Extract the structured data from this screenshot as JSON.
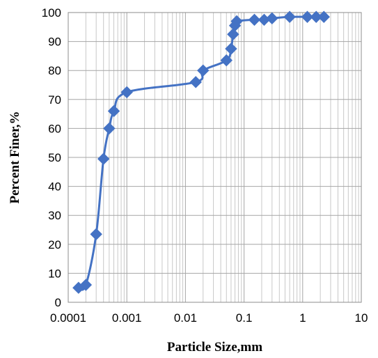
{
  "chart_data": {
    "type": "scatter",
    "title": "",
    "xlabel": "Particle Size,mm",
    "ylabel": "Percent Finer,%",
    "xscale": "log",
    "xlim": [
      0.0001,
      10
    ],
    "ylim": [
      0,
      100
    ],
    "x_tick_labels": [
      "0.0001",
      "0.001",
      "0.01",
      "0.1",
      "1",
      "10"
    ],
    "y_tick_labels": [
      "0",
      "10",
      "20",
      "30",
      "40",
      "50",
      "60",
      "70",
      "80",
      "90",
      "100"
    ],
    "grid": true,
    "legend": "none",
    "line_style": "smooth line with diamond markers",
    "series": [
      {
        "color": "#4472C4",
        "marker": "diamond",
        "x": [
          0.00015,
          0.0002,
          0.0003,
          0.0004,
          0.0005,
          0.0006,
          0.001,
          0.015,
          0.02,
          0.05,
          0.06,
          0.065,
          0.07,
          0.075,
          0.15,
          0.22,
          0.3,
          0.6,
          1.2,
          1.7,
          2.3
        ],
        "y": [
          5,
          6,
          23.5,
          49.5,
          60,
          66,
          72.5,
          76,
          80,
          83.5,
          87.5,
          92.5,
          95.5,
          97,
          97.5,
          97.5,
          98,
          98.5,
          98.5,
          98.5,
          98.5
        ]
      }
    ]
  }
}
